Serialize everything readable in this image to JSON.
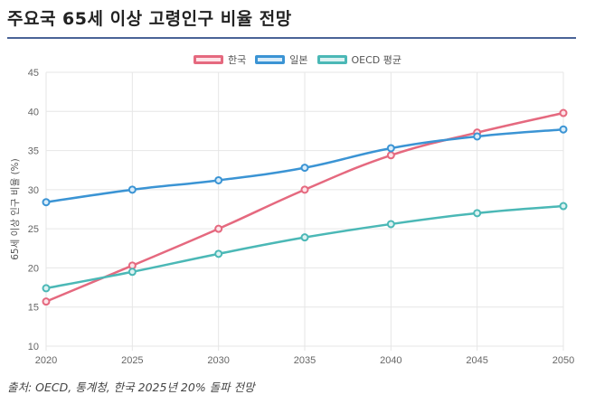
{
  "header": {
    "title": "주요국 65세 이상 고령인구 비율 전망"
  },
  "source_note": "출처: OECD, 통계청, 한국 2025년 20% 돌파 전망",
  "chart_data": {
    "type": "line",
    "title": "주요국 65세 이상 고령인구 비율 전망",
    "xlabel": "",
    "ylabel": "65세 이상 인구 비율 (%)",
    "x": [
      "2020",
      "2025",
      "2030",
      "2035",
      "2040",
      "2045",
      "2050"
    ],
    "ylim": [
      10,
      45
    ],
    "yticks": [
      10,
      15,
      20,
      25,
      30,
      35,
      40,
      45
    ],
    "grid": true,
    "legend_position": "top-center",
    "series": [
      {
        "name": "한국",
        "color": "#e5697f",
        "fill": "#fde3e8",
        "values": [
          15.7,
          20.3,
          25.0,
          30.0,
          34.4,
          37.3,
          39.8
        ]
      },
      {
        "name": "일본",
        "color": "#3b94d4",
        "fill": "#d9ecf9",
        "values": [
          28.4,
          30.0,
          31.2,
          32.8,
          35.3,
          36.8,
          37.7
        ]
      },
      {
        "name": "OECD 평균",
        "color": "#4bb8b6",
        "fill": "#dcf2f2",
        "values": [
          17.4,
          19.5,
          21.8,
          23.9,
          25.6,
          27.0,
          27.9
        ]
      }
    ]
  }
}
